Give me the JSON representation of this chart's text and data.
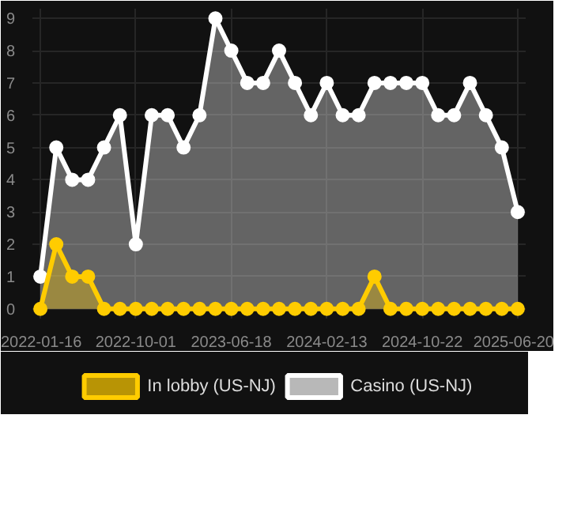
{
  "chart_data": {
    "type": "area",
    "categories": [
      "2022-01-16",
      null,
      null,
      null,
      null,
      null,
      "2022-10-01",
      null,
      null,
      null,
      null,
      null,
      "2023-06-18",
      null,
      null,
      null,
      null,
      null,
      "2024-02-13",
      null,
      null,
      null,
      null,
      null,
      "2024-10-22",
      null,
      null,
      null,
      null,
      null,
      "2025-06-20"
    ],
    "series": [
      {
        "name": "In lobby (US-NJ)",
        "color": "#ffcc00",
        "values": [
          0,
          2,
          1,
          1,
          0,
          0,
          0,
          0,
          0,
          0,
          0,
          0,
          0,
          0,
          0,
          0,
          0,
          0,
          0,
          0,
          0,
          1,
          0,
          0,
          0,
          0,
          0,
          0,
          0,
          0,
          0
        ]
      },
      {
        "name": "Casino (US-NJ)",
        "color": "#ffffff",
        "values": [
          1,
          5,
          4,
          4,
          5,
          6,
          2,
          6,
          6,
          5,
          6,
          9,
          8,
          7,
          7,
          8,
          7,
          6,
          7,
          6,
          6,
          7,
          7,
          7,
          7,
          6,
          6,
          7,
          6,
          5,
          3
        ]
      }
    ],
    "ylim": [
      -0.3,
      9.3
    ],
    "yticks": [
      0,
      1,
      2,
      3,
      4,
      5,
      6,
      7,
      8,
      9
    ],
    "grid": true,
    "legend": "bottom",
    "marker": "circle"
  }
}
